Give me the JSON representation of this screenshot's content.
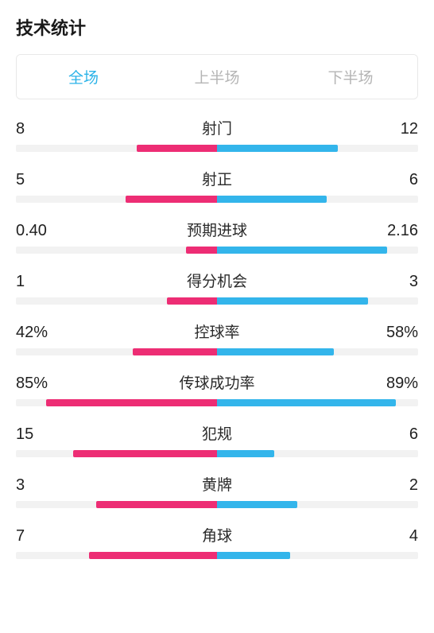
{
  "title": "技术统计",
  "colors": {
    "left_bar": "#ed2d74",
    "right_bar": "#33b5eb",
    "track": "#f2f2f2",
    "tab_active": "#2bb3e8",
    "tab_inactive": "#b5b5b5",
    "text": "#212121"
  },
  "tabs": {
    "items": [
      {
        "label": "全场",
        "active": true
      },
      {
        "label": "上半场",
        "active": false
      },
      {
        "label": "下半场",
        "active": false
      }
    ]
  },
  "stats": [
    {
      "label": "射门",
      "left_text": "8",
      "right_text": "12",
      "left_pct": 20,
      "right_pct": 30
    },
    {
      "label": "射正",
      "left_text": "5",
      "right_text": "6",
      "left_pct": 22.7,
      "right_pct": 27.3
    },
    {
      "label": "预期进球",
      "left_text": "0.40",
      "right_text": "2.16",
      "left_pct": 7.8,
      "right_pct": 42.2
    },
    {
      "label": "得分机会",
      "left_text": "1",
      "right_text": "3",
      "left_pct": 12.5,
      "right_pct": 37.5
    },
    {
      "label": "控球率",
      "left_text": "42%",
      "right_text": "58%",
      "left_pct": 21,
      "right_pct": 29
    },
    {
      "label": "传球成功率",
      "left_text": "85%",
      "right_text": "89%",
      "left_pct": 42.5,
      "right_pct": 44.5
    },
    {
      "label": "犯规",
      "left_text": "15",
      "right_text": "6",
      "left_pct": 35.7,
      "right_pct": 14.3
    },
    {
      "label": "黄牌",
      "left_text": "3",
      "right_text": "2",
      "left_pct": 30,
      "right_pct": 20
    },
    {
      "label": "角球",
      "left_text": "7",
      "right_text": "4",
      "left_pct": 31.8,
      "right_pct": 18.2
    }
  ]
}
